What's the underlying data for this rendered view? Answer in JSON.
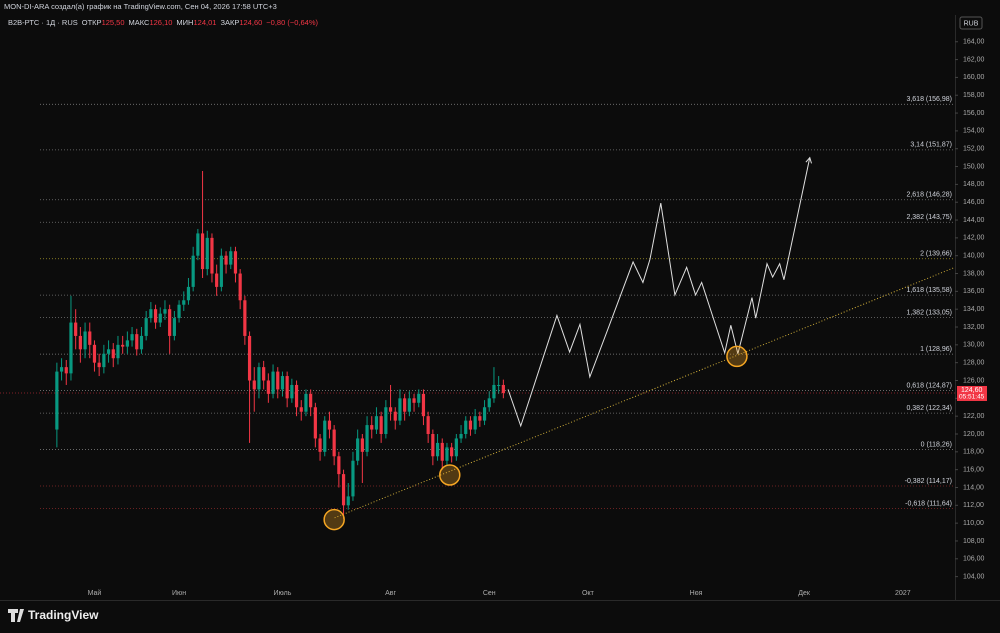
{
  "header": {
    "credit": "MON-DI-ARA создал(а) график на TradingView.com, Сен 04, 2026 17:58 UTC+3",
    "symbol": "В2В-РТС · 1Д · RUS",
    "ohlc": [
      {
        "label": "ОТКР",
        "value": "125,50"
      },
      {
        "label": "МАКС",
        "value": "126,10"
      },
      {
        "label": "МИН",
        "value": "124,01"
      },
      {
        "label": "ЗАКР",
        "value": "124,60"
      }
    ],
    "change": "−0,80 (−0,64%)",
    "currency": "RUB"
  },
  "brand": "TradingView",
  "chart_data": {
    "type": "candlestick",
    "xlim": [
      -12.1,
      191.1
    ],
    "ylim": [
      102.5,
      167.0
    ],
    "xticks": [
      {
        "value": 8,
        "label": "Май"
      },
      {
        "value": 26,
        "label": "Июн"
      },
      {
        "value": 48,
        "label": "Июль"
      },
      {
        "value": 71,
        "label": "Авг"
      },
      {
        "value": 92,
        "label": "Сен"
      },
      {
        "value": 113,
        "label": "Окт"
      },
      {
        "value": 136,
        "label": "Ноя"
      },
      {
        "value": 159,
        "label": "Дек"
      },
      {
        "value": 180,
        "label": "2027"
      }
    ],
    "yticks": [
      {
        "value": 104,
        "label": "104,00"
      },
      {
        "value": 106,
        "label": "106,00"
      },
      {
        "value": 108,
        "label": "108,00"
      },
      {
        "value": 110,
        "label": "110,00"
      },
      {
        "value": 112,
        "label": "112,00"
      },
      {
        "value": 114,
        "label": "114,00"
      },
      {
        "value": 116,
        "label": "116,00"
      },
      {
        "value": 118,
        "label": "118,00"
      },
      {
        "value": 120,
        "label": "120,00"
      },
      {
        "value": 122,
        "label": "122,00"
      },
      {
        "value": 124,
        "label": "124,00"
      },
      {
        "value": 126,
        "label": "126,00"
      },
      {
        "value": 128,
        "label": "128,00"
      },
      {
        "value": 130,
        "label": "130,00"
      },
      {
        "value": 132,
        "label": "132,00"
      },
      {
        "value": 134,
        "label": "134,00"
      },
      {
        "value": 136,
        "label": "136,00"
      },
      {
        "value": 138,
        "label": "138,00"
      },
      {
        "value": 140,
        "label": "140,00"
      },
      {
        "value": 142,
        "label": "142,00"
      },
      {
        "value": 144,
        "label": "144,00"
      },
      {
        "value": 146,
        "label": "146,00"
      },
      {
        "value": 148,
        "label": "148,00"
      },
      {
        "value": 150,
        "label": "150,00"
      },
      {
        "value": 152,
        "label": "152,00"
      },
      {
        "value": 154,
        "label": "154,00"
      },
      {
        "value": 156,
        "label": "156,00"
      },
      {
        "value": 158,
        "label": "158,00"
      },
      {
        "value": 160,
        "label": "160,00"
      },
      {
        "value": 162,
        "label": "162,00"
      },
      {
        "value": 164,
        "label": "164,00"
      }
    ],
    "up_color": "#089981",
    "down_color": "#f23645",
    "open": [
      120.5,
      127.0,
      127.5,
      126.8,
      132.5,
      131.0,
      129.5,
      131.5,
      130.0,
      128.0,
      127.5,
      129.0,
      129.5,
      128.5,
      130.0,
      129.8,
      130.5,
      131.2,
      129.5,
      131.0,
      133.0,
      134.0,
      132.5,
      133.5,
      134.0,
      131.0,
      133.0,
      134.5,
      135.0,
      136.5,
      140.0,
      142.5,
      138.5,
      142.0,
      138.0,
      136.5,
      140.0,
      139.0,
      140.5,
      138.0,
      135.0,
      131.0,
      126.0,
      125.0,
      127.5,
      126.0,
      124.5,
      127.0,
      125.0,
      126.5,
      124.0,
      125.5,
      123.0,
      122.5,
      124.5,
      123.0,
      119.5,
      118.0,
      121.5,
      120.5,
      117.5,
      115.5,
      112.0,
      113.0,
      117.0,
      119.5,
      118.0,
      121.0,
      120.5,
      122.0,
      120.0,
      123.0,
      122.5,
      121.5,
      124.0,
      122.5,
      124.0,
      123.5,
      124.5,
      122.0,
      120.0,
      117.5,
      119.0,
      117.0,
      118.5,
      117.5,
      119.5,
      120.0,
      121.5,
      120.5,
      122.0,
      121.5,
      123.0,
      124.0,
      125.5,
      125.5
    ],
    "close": [
      127.0,
      127.5,
      126.8,
      132.5,
      131.0,
      129.5,
      131.5,
      130.0,
      128.0,
      127.5,
      129.0,
      129.5,
      128.5,
      130.0,
      129.8,
      130.5,
      131.2,
      129.5,
      131.0,
      133.0,
      134.0,
      132.5,
      133.5,
      134.0,
      131.0,
      133.0,
      134.5,
      135.0,
      136.5,
      140.0,
      142.5,
      138.5,
      142.0,
      138.0,
      136.5,
      140.0,
      139.0,
      140.5,
      138.0,
      135.0,
      131.0,
      126.0,
      125.0,
      127.5,
      126.0,
      124.5,
      127.0,
      125.0,
      126.5,
      124.0,
      125.5,
      123.0,
      122.5,
      124.5,
      123.0,
      119.5,
      118.0,
      121.5,
      120.5,
      117.5,
      115.5,
      112.0,
      113.0,
      117.0,
      119.5,
      118.0,
      121.0,
      120.5,
      122.0,
      120.0,
      123.0,
      122.5,
      121.5,
      124.0,
      122.5,
      124.0,
      123.5,
      124.5,
      122.0,
      120.0,
      117.5,
      119.0,
      117.0,
      118.5,
      117.5,
      119.5,
      120.0,
      121.5,
      120.5,
      122.0,
      121.5,
      123.0,
      124.0,
      125.5,
      125.5,
      124.6
    ],
    "high": [
      128.0,
      128.5,
      128.3,
      135.5,
      134.0,
      132.0,
      132.5,
      132.5,
      130.5,
      129.0,
      130.0,
      130.5,
      130.2,
      131.0,
      131.0,
      131.5,
      132.0,
      131.8,
      132.0,
      133.8,
      134.8,
      134.5,
      134.2,
      135.0,
      134.5,
      133.8,
      135.0,
      136.0,
      137.5,
      141.0,
      143.0,
      149.5,
      142.8,
      142.5,
      139.0,
      140.8,
      140.5,
      141.0,
      141.0,
      138.5,
      135.5,
      131.5,
      127.5,
      128.0,
      128.2,
      126.8,
      127.8,
      127.5,
      127.0,
      127.0,
      126.2,
      126.0,
      123.8,
      125.0,
      125.0,
      123.5,
      120.0,
      122.0,
      122.5,
      121.0,
      118.0,
      116.0,
      114.5,
      118.0,
      120.5,
      120.0,
      122.0,
      122.0,
      123.0,
      122.5,
      123.8,
      125.5,
      123.0,
      125.0,
      124.5,
      124.8,
      124.5,
      125.0,
      125.0,
      122.5,
      120.5,
      120.0,
      119.5,
      119.0,
      119.0,
      120.0,
      121.0,
      122.0,
      122.0,
      122.8,
      122.5,
      123.8,
      124.8,
      127.5,
      126.5,
      126.1
    ],
    "low": [
      118.5,
      126.0,
      125.5,
      126.0,
      129.5,
      128.0,
      128.5,
      128.5,
      127.0,
      126.5,
      126.8,
      128.0,
      127.5,
      127.8,
      129.0,
      129.0,
      129.8,
      128.8,
      129.0,
      130.5,
      132.5,
      131.8,
      132.0,
      132.8,
      129.0,
      130.5,
      132.5,
      133.8,
      134.5,
      136.0,
      139.5,
      137.5,
      137.8,
      137.0,
      135.5,
      136.0,
      138.0,
      138.5,
      137.0,
      134.0,
      130.0,
      119.0,
      122.5,
      124.0,
      125.0,
      123.5,
      124.0,
      124.0,
      124.2,
      123.0,
      123.5,
      122.0,
      121.5,
      122.0,
      122.0,
      118.5,
      117.0,
      117.5,
      119.5,
      116.5,
      114.0,
      110.5,
      111.5,
      112.5,
      116.5,
      114.5,
      117.5,
      119.5,
      120.0,
      119.0,
      119.5,
      121.5,
      120.5,
      121.0,
      121.5,
      122.0,
      122.5,
      123.0,
      121.0,
      119.0,
      116.5,
      117.0,
      116.0,
      116.5,
      116.8,
      117.0,
      119.0,
      119.5,
      119.8,
      120.0,
      120.8,
      121.0,
      122.5,
      123.5,
      124.5,
      124.01
    ],
    "last_price": {
      "value": 124.6,
      "label": "124,60",
      "timer": "05:51:45"
    },
    "fib": {
      "levels": [
        {
          "value": 156.98,
          "label": "3,618 (156,98)",
          "color": "#4caf50",
          "line": "#777"
        },
        {
          "value": 151.87,
          "label": "3,14 (151,87)",
          "color": "#4caf50",
          "line": "#777"
        },
        {
          "value": 146.28,
          "label": "2,618 (146,28)",
          "color": "#4caf50",
          "line": "#777"
        },
        {
          "value": 143.75,
          "label": "2,382 (143,75)",
          "color": "#4caf50",
          "line": "#777"
        },
        {
          "value": 139.66,
          "label": "2 (139,66)",
          "color": "#fdd835",
          "line": "#a89a2a"
        },
        {
          "value": 135.58,
          "label": "1,618 (135,58)",
          "color": "#4caf50",
          "line": "#777"
        },
        {
          "value": 133.05,
          "label": "1,382 (133,05)",
          "color": "#4caf50",
          "line": "#777"
        },
        {
          "value": 128.96,
          "label": "1 (128,96)",
          "color": "#ffffff",
          "line": "#888"
        },
        {
          "value": 124.87,
          "label": "0,618 (124,87)",
          "color": "#4caf50",
          "line": "#777"
        },
        {
          "value": 122.34,
          "label": "0,382 (122,34)",
          "color": "#4caf50",
          "line": "#777"
        },
        {
          "value": 118.26,
          "label": "0 (118,26)",
          "color": "#ffffff",
          "line": "#888"
        },
        {
          "value": 114.17,
          "label": "-0,382 (114,17)",
          "color": "#f23645",
          "line": "#8a2a2a"
        },
        {
          "value": 111.64,
          "label": "-0,618 (111,64)",
          "color": "#f23645",
          "line": "#8a2a2a"
        }
      ]
    },
    "projection": {
      "color": "#e0e0e0",
      "x": [
        96,
        98.7,
        106.4,
        109.1,
        111.3,
        113.4,
        117.2,
        122.6,
        124.7,
        126.2,
        128.5,
        131.5,
        134.0,
        135.9,
        137.2,
        139.3,
        142.1,
        143.4,
        144.9,
        147.9,
        148.7,
        151.1,
        152.3,
        153.8,
        154.7,
        160.2
      ],
      "values": [
        125.0,
        120.9,
        133.3,
        129.2,
        132.3,
        126.4,
        131.7,
        139.3,
        137.0,
        139.6,
        145.9,
        135.6,
        138.7,
        135.6,
        137.0,
        133.6,
        129.1,
        132.2,
        129.0,
        135.3,
        133.0,
        139.1,
        137.6,
        139.1,
        137.3,
        151.0
      ]
    },
    "trendline": {
      "color": "#d4b23a",
      "x": [
        59.1,
        191.1
      ],
      "values": [
        110.6,
        138.7
      ]
    },
    "circles": {
      "color": "#f5a623",
      "x": [
        59.0,
        83.6,
        144.7
      ],
      "values": [
        110.4,
        115.4,
        128.7
      ]
    }
  }
}
